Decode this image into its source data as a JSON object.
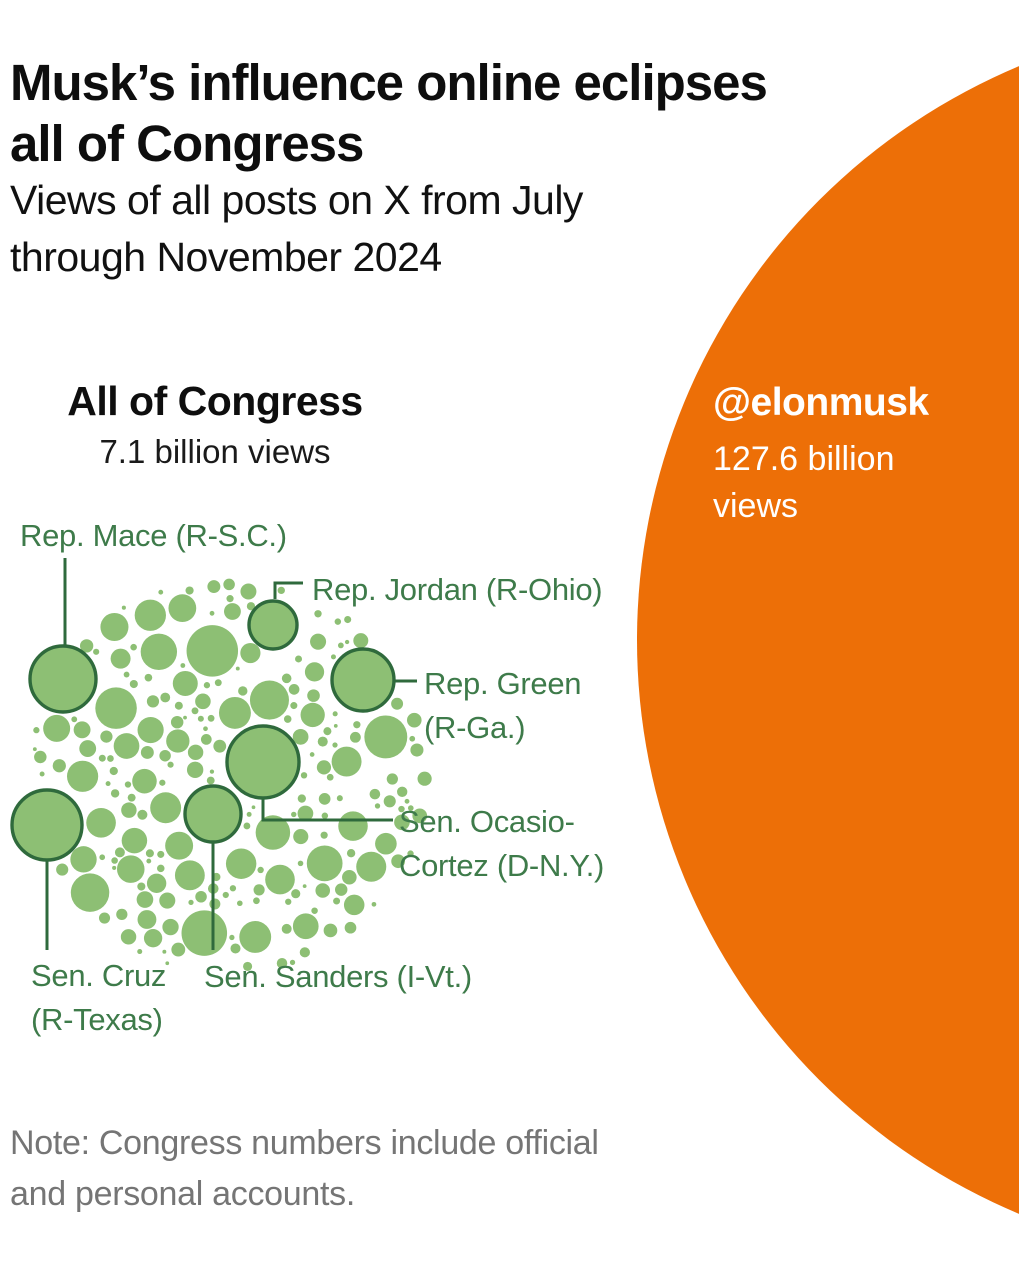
{
  "colors": {
    "orange": "#ED6F07",
    "bubble_green": "#8DBF74",
    "dark_green": "#2F6A3C",
    "label_green": "#3E7B4A",
    "title_black": "#0E0E0E",
    "note_gray": "#757575",
    "white": "#FFFFFF"
  },
  "chart_data": {
    "type": "circle-comparison-bubble-pack",
    "title": "Musk’s influence online eclipses\nall of Congress",
    "subtitle": "Views of all posts on X from July\nthrough November 2024",
    "note": "Note: Congress numbers include official\nand personal accounts.",
    "legend_position": "none",
    "grid": false,
    "congress": {
      "heading": "All of Congress",
      "views_label": "7.1 billion views",
      "views_billions": 7.1,
      "bubble_count_represented": "all members of Congress (unlabeled bubbles)",
      "members_labeled": [
        {
          "id": "mace",
          "label": "Rep. Mace (R-S.C.)"
        },
        {
          "id": "jordan",
          "label": "Rep. Jordan (R-Ohio)"
        },
        {
          "id": "green",
          "label": "Rep. Green\n(R-Ga.)"
        },
        {
          "id": "aoc",
          "label": "Sen. Ocasio-\nCortez (D-N.Y.)"
        },
        {
          "id": "cruz",
          "label": "Sen. Cruz\n(R-Texas)"
        },
        {
          "id": "sanders",
          "label": "Sen. Sanders (I-Vt.)"
        }
      ]
    },
    "musk": {
      "handle": "@elonmusk",
      "views_label": "127.6 billion views",
      "views_label_display": "127.6 billion\nviews",
      "views_billions": 127.6
    }
  }
}
